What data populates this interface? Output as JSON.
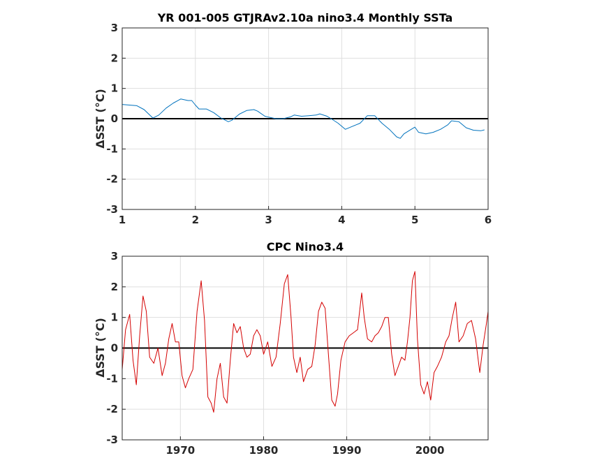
{
  "chart_data": [
    {
      "type": "line",
      "title": "YR 001-005 GTJRAv2.10a nino3.4 Monthly SSTa",
      "ylabel": "ΔSST (°C)",
      "xlabel": "",
      "xlim": [
        1,
        6
      ],
      "ylim": [
        -3,
        3
      ],
      "xticks": [
        "1",
        "2",
        "3",
        "4",
        "5",
        "6"
      ],
      "yticks": [
        "-3",
        "-2",
        "-1",
        "0",
        "1",
        "2",
        "3"
      ],
      "grid": true,
      "zero_line": true,
      "series": [
        {
          "color": "#0072bd",
          "x": [
            1.0,
            1.2,
            1.3,
            1.42,
            1.5,
            1.6,
            1.7,
            1.8,
            1.9,
            1.95,
            2.0,
            2.05,
            2.15,
            2.25,
            2.35,
            2.45,
            2.5,
            2.6,
            2.7,
            2.8,
            2.85,
            2.95,
            3.0,
            3.1,
            3.2,
            3.3,
            3.35,
            3.45,
            3.55,
            3.65,
            3.7,
            3.8,
            3.9,
            3.95,
            4.05,
            4.15,
            4.25,
            4.35,
            4.45,
            4.55,
            4.65,
            4.75,
            4.8,
            4.85,
            4.95,
            5.0,
            5.05,
            5.15,
            5.25,
            5.35,
            5.45,
            5.5,
            5.6,
            5.7,
            5.8,
            5.9,
            5.95
          ],
          "y": [
            0.47,
            0.43,
            0.3,
            0.02,
            0.12,
            0.35,
            0.52,
            0.65,
            0.6,
            0.6,
            0.45,
            0.32,
            0.32,
            0.2,
            0.02,
            -0.1,
            -0.05,
            0.15,
            0.27,
            0.3,
            0.25,
            0.08,
            0.05,
            0.0,
            0.0,
            0.06,
            0.12,
            0.08,
            0.1,
            0.12,
            0.16,
            0.08,
            -0.07,
            -0.15,
            -0.35,
            -0.25,
            -0.15,
            0.1,
            0.1,
            -0.15,
            -0.35,
            -0.6,
            -0.65,
            -0.5,
            -0.35,
            -0.28,
            -0.45,
            -0.5,
            -0.45,
            -0.35,
            -0.2,
            -0.07,
            -0.1,
            -0.3,
            -0.38,
            -0.4,
            -0.37
          ]
        }
      ]
    },
    {
      "type": "line",
      "title": "CPC Nino3.4",
      "ylabel": "ΔSST (°C)",
      "xlabel": "",
      "xlim": [
        1963,
        2007
      ],
      "ylim": [
        -3,
        3
      ],
      "xticks": [
        "1970",
        "1980",
        "1990",
        "2000"
      ],
      "yticks": [
        "-3",
        "-2",
        "-1",
        "0",
        "1",
        "2",
        "3"
      ],
      "grid": true,
      "zero_line": true,
      "series": [
        {
          "color": "#d40000",
          "x": [
            1963.0,
            1963.4,
            1963.9,
            1964.3,
            1964.7,
            1965.1,
            1965.5,
            1965.9,
            1966.3,
            1966.8,
            1967.3,
            1967.8,
            1968.2,
            1968.6,
            1969.0,
            1969.4,
            1969.8,
            1970.2,
            1970.6,
            1971.0,
            1971.5,
            1972.0,
            1972.5,
            1972.9,
            1973.3,
            1973.7,
            1974.0,
            1974.4,
            1974.8,
            1975.2,
            1975.6,
            1976.0,
            1976.4,
            1976.8,
            1977.2,
            1977.6,
            1978.0,
            1978.4,
            1978.8,
            1979.2,
            1979.6,
            1980.0,
            1980.5,
            1981.0,
            1981.5,
            1982.0,
            1982.5,
            1982.9,
            1983.3,
            1983.6,
            1984.0,
            1984.4,
            1984.8,
            1985.3,
            1985.8,
            1986.2,
            1986.6,
            1987.0,
            1987.4,
            1987.8,
            1988.2,
            1988.6,
            1988.9,
            1989.3,
            1989.8,
            1990.3,
            1990.8,
            1991.3,
            1991.8,
            1992.1,
            1992.5,
            1993.0,
            1993.4,
            1993.8,
            1994.2,
            1994.6,
            1995.0,
            1995.4,
            1995.8,
            1996.2,
            1996.6,
            1997.0,
            1997.3,
            1997.6,
            1997.9,
            1998.2,
            1998.5,
            1998.9,
            1999.3,
            1999.7,
            2000.1,
            2000.5,
            2000.9,
            2001.4,
            2001.9,
            2002.3,
            2002.7,
            2003.1,
            2003.5,
            2004.0,
            2004.5,
            2005.0,
            2005.5,
            2006.0,
            2006.4,
            2006.8,
            2007.0
          ],
          "y": [
            -0.7,
            0.6,
            1.1,
            -0.4,
            -1.2,
            0.4,
            1.7,
            1.2,
            -0.3,
            -0.5,
            0.0,
            -0.9,
            -0.5,
            0.3,
            0.8,
            0.2,
            0.2,
            -0.9,
            -1.3,
            -1.0,
            -0.7,
            1.2,
            2.2,
            0.9,
            -1.6,
            -1.8,
            -2.1,
            -1.0,
            -0.5,
            -1.6,
            -1.8,
            -0.4,
            0.8,
            0.5,
            0.7,
            0.0,
            -0.3,
            -0.2,
            0.4,
            0.6,
            0.4,
            -0.2,
            0.2,
            -0.6,
            -0.3,
            0.8,
            2.1,
            2.4,
            1.0,
            -0.3,
            -0.8,
            -0.3,
            -1.1,
            -0.7,
            -0.6,
            0.1,
            1.2,
            1.5,
            1.3,
            -0.2,
            -1.7,
            -1.9,
            -1.5,
            -0.4,
            0.2,
            0.4,
            0.5,
            0.6,
            1.8,
            1.0,
            0.3,
            0.2,
            0.4,
            0.5,
            0.7,
            1.0,
            1.0,
            -0.2,
            -0.9,
            -0.6,
            -0.3,
            -0.4,
            0.2,
            1.0,
            2.2,
            2.5,
            0.3,
            -1.2,
            -1.5,
            -1.1,
            -1.7,
            -0.8,
            -0.6,
            -0.3,
            0.2,
            0.4,
            1.0,
            1.5,
            0.2,
            0.4,
            0.8,
            0.9,
            0.3,
            -0.8,
            0.1,
            0.8,
            1.2
          ]
        }
      ]
    }
  ]
}
